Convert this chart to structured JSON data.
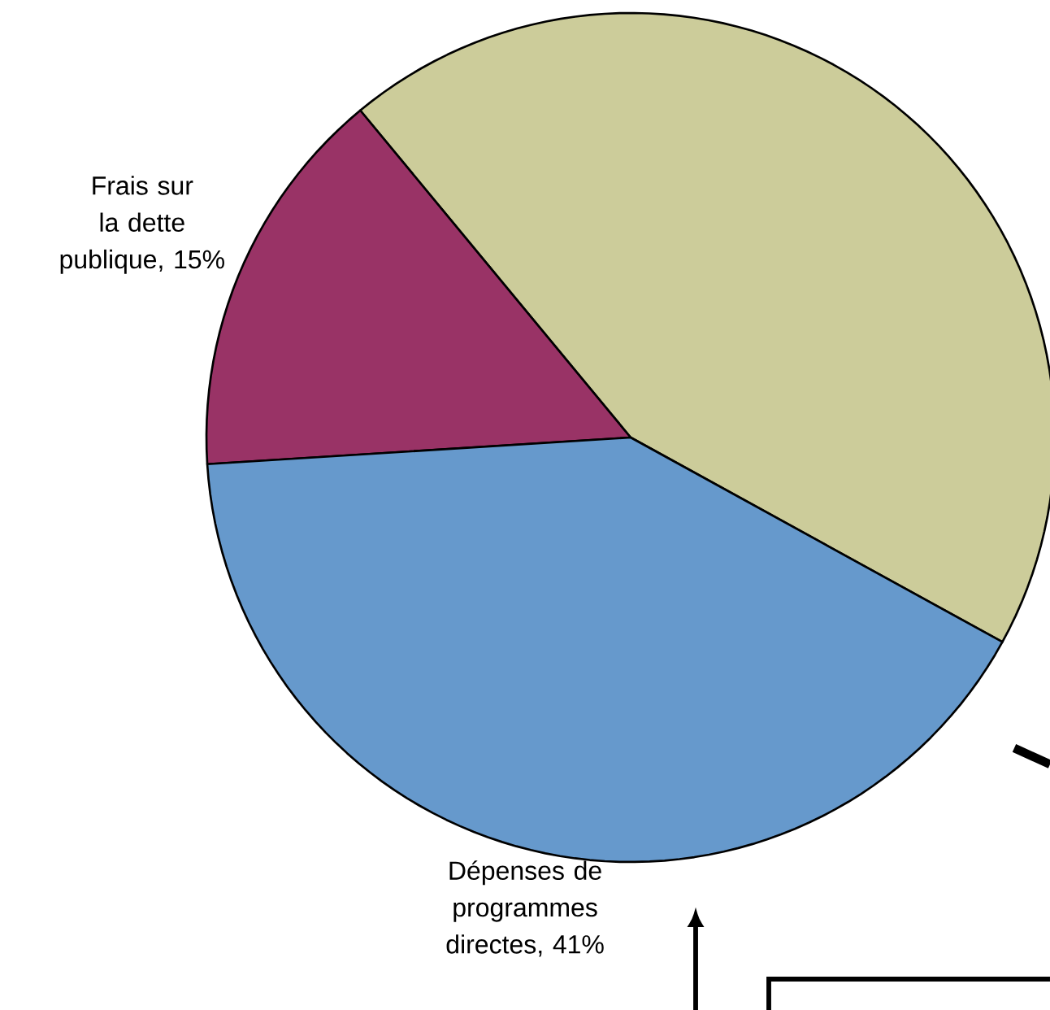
{
  "chart_data": {
    "type": "pie",
    "categories": [
      null,
      "Frais sur la dette publique, 15%",
      "Dépenses de programmes directes, 41%"
    ],
    "values": [
      44,
      15,
      41
    ],
    "colors": [
      "#cccc9a",
      "#993366",
      "#6699cc"
    ]
  }
}
